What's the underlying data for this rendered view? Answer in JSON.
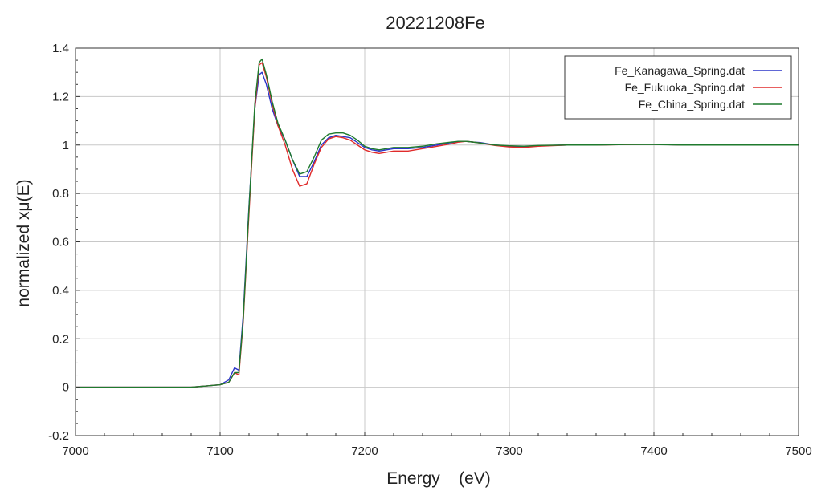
{
  "chart_data": {
    "type": "line",
    "title": "20221208Fe",
    "xlabel": "Energy    (eV)",
    "ylabel": "normalized xμ(E)",
    "xlim": [
      7000,
      7500
    ],
    "ylim": [
      -0.2,
      1.4
    ],
    "xticks": [
      7000,
      7100,
      7200,
      7300,
      7400,
      7500
    ],
    "xtick_labels": [
      "7000",
      "7100",
      "7200",
      "7300",
      "7400",
      "7500"
    ],
    "yticks": [
      -0.2,
      0,
      0.2,
      0.4,
      0.6,
      0.8,
      1,
      1.2,
      1.4
    ],
    "ytick_labels": [
      "-0.2",
      "0",
      "0.2",
      "0.4",
      "0.6",
      "0.8",
      "1",
      "1.2",
      "1.4"
    ],
    "grid": true,
    "legend_position": "top-right",
    "series": [
      {
        "name": "Fe_Kanagawa_Spring.dat",
        "color": "#2b35c9",
        "x": [
          7000,
          7050,
          7080,
          7100,
          7106,
          7110,
          7113,
          7116,
          7120,
          7124,
          7127,
          7129,
          7132,
          7136,
          7140,
          7145,
          7150,
          7155,
          7160,
          7165,
          7170,
          7175,
          7180,
          7185,
          7190,
          7195,
          7200,
          7205,
          7210,
          7215,
          7220,
          7225,
          7230,
          7240,
          7250,
          7260,
          7265,
          7270,
          7275,
          7280,
          7290,
          7300,
          7310,
          7320,
          7340,
          7360,
          7380,
          7400,
          7420,
          7440,
          7460,
          7480,
          7500
        ],
        "y": [
          0.0,
          0.0,
          0.0,
          0.01,
          0.03,
          0.08,
          0.07,
          0.3,
          0.75,
          1.15,
          1.29,
          1.3,
          1.25,
          1.15,
          1.08,
          1.02,
          0.94,
          0.87,
          0.87,
          0.93,
          1.0,
          1.03,
          1.04,
          1.035,
          1.03,
          1.01,
          0.99,
          0.98,
          0.975,
          0.98,
          0.985,
          0.985,
          0.985,
          0.99,
          1.0,
          1.01,
          1.015,
          1.015,
          1.012,
          1.01,
          1.0,
          0.995,
          0.993,
          0.997,
          1.0,
          1.0,
          1.003,
          1.003,
          1.0,
          1.0,
          1.0,
          1.0,
          1.0
        ]
      },
      {
        "name": "Fe_Fukuoka_Spring.dat",
        "color": "#e02b2b",
        "x": [
          7000,
          7050,
          7080,
          7100,
          7106,
          7110,
          7113,
          7116,
          7120,
          7124,
          7127,
          7129,
          7132,
          7136,
          7140,
          7145,
          7150,
          7155,
          7160,
          7165,
          7170,
          7175,
          7180,
          7185,
          7190,
          7195,
          7200,
          7205,
          7210,
          7215,
          7220,
          7225,
          7230,
          7240,
          7250,
          7260,
          7265,
          7270,
          7275,
          7280,
          7290,
          7300,
          7310,
          7320,
          7340,
          7360,
          7380,
          7400,
          7420,
          7440,
          7460,
          7480,
          7500
        ],
        "y": [
          0.0,
          0.0,
          0.0,
          0.01,
          0.02,
          0.06,
          0.05,
          0.27,
          0.72,
          1.15,
          1.33,
          1.34,
          1.28,
          1.17,
          1.08,
          1.0,
          0.9,
          0.83,
          0.84,
          0.92,
          0.99,
          1.025,
          1.035,
          1.03,
          1.02,
          1.0,
          0.98,
          0.97,
          0.965,
          0.97,
          0.975,
          0.975,
          0.975,
          0.985,
          0.995,
          1.005,
          1.012,
          1.015,
          1.012,
          1.008,
          0.998,
          0.992,
          0.99,
          0.995,
          1.0,
          1.0,
          1.002,
          1.003,
          1.0,
          1.0,
          1.0,
          1.0,
          1.0
        ]
      },
      {
        "name": "Fe_China_Spring.dat",
        "color": "#1f7a2e",
        "x": [
          7000,
          7050,
          7080,
          7100,
          7106,
          7110,
          7113,
          7116,
          7120,
          7124,
          7127,
          7129,
          7132,
          7136,
          7140,
          7145,
          7150,
          7155,
          7160,
          7165,
          7170,
          7175,
          7180,
          7185,
          7190,
          7195,
          7200,
          7205,
          7210,
          7215,
          7220,
          7225,
          7230,
          7240,
          7250,
          7260,
          7265,
          7270,
          7275,
          7280,
          7290,
          7300,
          7310,
          7320,
          7340,
          7360,
          7380,
          7400,
          7420,
          7440,
          7460,
          7480,
          7500
        ],
        "y": [
          0.0,
          0.0,
          0.0,
          0.01,
          0.02,
          0.06,
          0.06,
          0.28,
          0.74,
          1.17,
          1.34,
          1.355,
          1.29,
          1.18,
          1.09,
          1.02,
          0.94,
          0.88,
          0.89,
          0.95,
          1.02,
          1.045,
          1.05,
          1.05,
          1.04,
          1.02,
          0.995,
          0.985,
          0.98,
          0.985,
          0.99,
          0.99,
          0.99,
          0.995,
          1.005,
          1.012,
          1.015,
          1.015,
          1.012,
          1.008,
          1.0,
          0.997,
          0.995,
          0.998,
          1.0,
          1.0,
          1.002,
          1.002,
          1.0,
          1.0,
          1.0,
          1.0,
          1.0
        ]
      }
    ]
  }
}
